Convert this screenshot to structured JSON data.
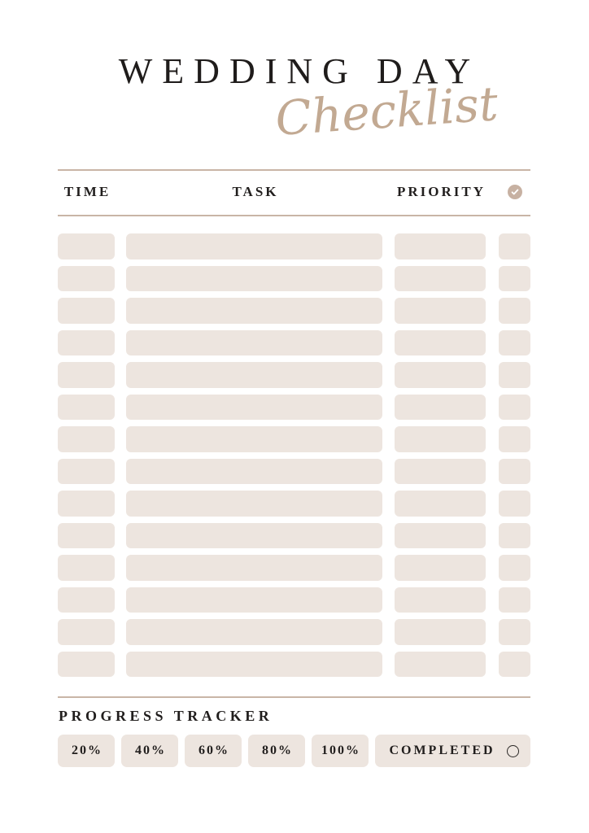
{
  "title": {
    "main": "WEDDING DAY",
    "script": "Checklist"
  },
  "table": {
    "headers": {
      "time": "TIME",
      "task": "TASK",
      "priority": "PRIORITY"
    },
    "header_icon": "check-circle-icon",
    "rows": [
      {
        "time": "",
        "task": "",
        "priority": "",
        "done": false
      },
      {
        "time": "",
        "task": "",
        "priority": "",
        "done": false
      },
      {
        "time": "",
        "task": "",
        "priority": "",
        "done": false
      },
      {
        "time": "",
        "task": "",
        "priority": "",
        "done": false
      },
      {
        "time": "",
        "task": "",
        "priority": "",
        "done": false
      },
      {
        "time": "",
        "task": "",
        "priority": "",
        "done": false
      },
      {
        "time": "",
        "task": "",
        "priority": "",
        "done": false
      },
      {
        "time": "",
        "task": "",
        "priority": "",
        "done": false
      },
      {
        "time": "",
        "task": "",
        "priority": "",
        "done": false
      },
      {
        "time": "",
        "task": "",
        "priority": "",
        "done": false
      },
      {
        "time": "",
        "task": "",
        "priority": "",
        "done": false
      },
      {
        "time": "",
        "task": "",
        "priority": "",
        "done": false
      },
      {
        "time": "",
        "task": "",
        "priority": "",
        "done": false
      },
      {
        "time": "",
        "task": "",
        "priority": "",
        "done": false
      }
    ]
  },
  "progress": {
    "label": "PROGRESS TRACKER",
    "steps": [
      "20%",
      "40%",
      "60%",
      "80%",
      "100%"
    ],
    "completed_label": "COMPLETED",
    "completed_icon": "circle-outline-icon"
  },
  "colors": {
    "ink": "#211E1D",
    "line": "#C9B5A6",
    "cell": "#EDE5DF",
    "script": "#C2A992",
    "badge": "#C7B1A2"
  }
}
